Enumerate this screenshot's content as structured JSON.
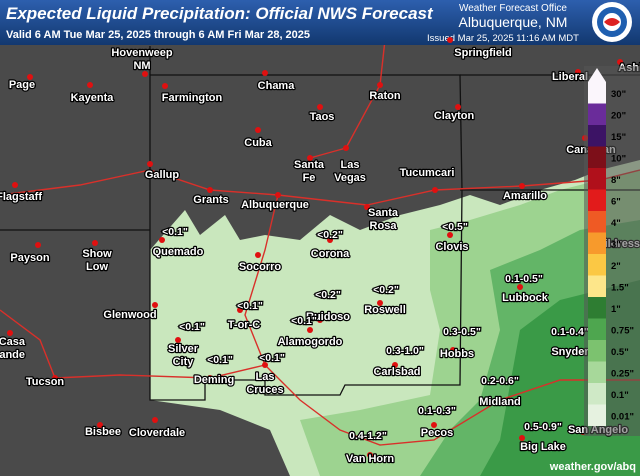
{
  "header": {
    "title": "Expected Liquid Precipitation: Official NWS Forecast",
    "subtitle": "Valid 6 AM Tue Mar 25, 2025 through 6 AM Fri Mar 28, 2025",
    "office": "Weather Forecast Office",
    "city": "Albuquerque, NM",
    "issued": "Issued Mar 25, 2025 11:16 AM MDT"
  },
  "cities": [
    [
      "Page"
    ],
    [
      "Kayenta"
    ],
    [
      "Hovenweep",
      "NM"
    ],
    [
      "Farmington"
    ],
    [
      "Chama"
    ],
    [
      "Raton"
    ],
    [
      "Springfield"
    ],
    [
      "Liberal"
    ],
    [
      "Ashland"
    ],
    [
      "Taos"
    ],
    [
      "Clayton"
    ],
    [
      "Cuba"
    ],
    [
      "Santa",
      "Fe"
    ],
    [
      "Las",
      "Vegas"
    ],
    [
      "Gallup"
    ],
    [
      "Grants"
    ],
    [
      "Albuquerque"
    ],
    [
      "Santa",
      "Rosa"
    ],
    [
      "Tucumcari"
    ],
    [
      "Amarillo"
    ],
    [
      "Canadian"
    ],
    [
      "Flagstaff"
    ],
    [
      "Payson"
    ],
    [
      "Show",
      "Low"
    ],
    [
      "Quemado"
    ],
    [
      "Socorro"
    ],
    [
      "Corona"
    ],
    [
      "Clovis"
    ],
    [
      "Childress"
    ],
    [
      "Glenwood"
    ],
    [
      "T-or-C"
    ],
    [
      "Ruidoso"
    ],
    [
      "Roswell"
    ],
    [
      "Lubbock"
    ],
    [
      "Silver",
      "City"
    ],
    [
      "Alamogordo"
    ],
    [
      "Hobbs"
    ],
    [
      "Snyder"
    ],
    [
      "Deming"
    ],
    [
      "Las",
      "Cruces"
    ],
    [
      "Carlsbad"
    ],
    [
      "Casa",
      "Grande"
    ],
    [
      "Tucson"
    ],
    [
      "Midland"
    ],
    [
      "Bisbee"
    ],
    [
      "Cloverdale"
    ],
    [
      "Pecos"
    ],
    [
      "San Angelo"
    ],
    [
      "Big Lake"
    ],
    [
      "Van Horn"
    ]
  ],
  "amounts": [
    "<0.1\"",
    "<0.1\"",
    "<0.1\"",
    "<0.1\"",
    "<0.1\"",
    "<0.1\"",
    "<0.2\"",
    "<0.2\"",
    "<0.2\"",
    "<0.5\"",
    "0.1-0.5\"",
    "0.3-0.5\"",
    "0.1-0.4\"",
    "0.3-1.0\"",
    "0.2-0.6\"",
    "0.1-0.3\"",
    "0.4-1.2\"",
    "0.5-0.9\""
  ],
  "legend": [
    "30\"",
    "20\"",
    "15\"",
    "10\"",
    "8\"",
    "6\"",
    "4\"",
    "3\"",
    "2\"",
    "1.5\"",
    "1\"",
    "0.75\"",
    "0.5\"",
    "0.25\"",
    "0.1\"",
    "0.01\""
  ],
  "footer": {
    "url": "weather.gov/abq"
  }
}
